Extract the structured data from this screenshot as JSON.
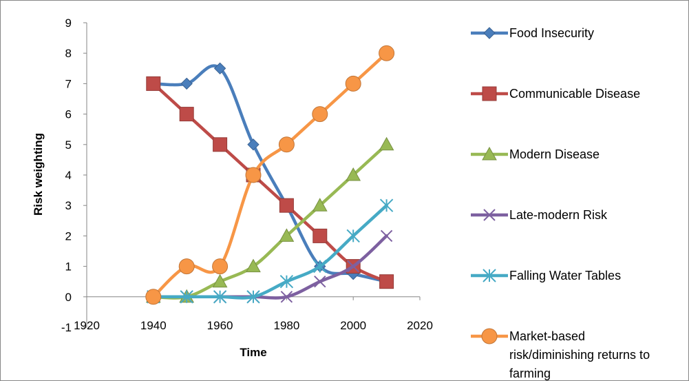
{
  "chart_data": {
    "type": "line",
    "title": "",
    "xlabel": "Time",
    "ylabel": "Risk weighting",
    "xlim": [
      1920,
      2020
    ],
    "ylim": [
      -1,
      9
    ],
    "xticks": [
      1920,
      1940,
      1960,
      1980,
      2000,
      2020
    ],
    "yticks": [
      -1,
      0,
      1,
      2,
      3,
      4,
      5,
      6,
      7,
      8,
      9
    ],
    "x": [
      1940,
      1950,
      1960,
      1970,
      1980,
      1990,
      2000,
      2010
    ],
    "legend_position": "right",
    "grid": false,
    "series": [
      {
        "name": "Food Insecurity",
        "color": "#4a7ebb",
        "marker": "diamond",
        "values": [
          7,
          7,
          7.5,
          5,
          3,
          1,
          0.75,
          0.5
        ]
      },
      {
        "name": "Communicable Disease",
        "color": "#be4b48",
        "marker": "square",
        "values": [
          7,
          6,
          5,
          4,
          3,
          2,
          1,
          0.5
        ]
      },
      {
        "name": "Modern Disease",
        "color": "#98b954",
        "marker": "triangle",
        "values": [
          0,
          0,
          0.5,
          1,
          2,
          3,
          4,
          5
        ]
      },
      {
        "name": "Late-modern Risk",
        "color": "#7d60a0",
        "marker": "x",
        "values": [
          0,
          0,
          0,
          0,
          0,
          0.5,
          1,
          2
        ]
      },
      {
        "name": "Falling Water Tables",
        "color": "#46aac5",
        "marker": "star",
        "values": [
          0,
          0,
          0,
          0,
          0.5,
          1,
          2,
          3
        ]
      },
      {
        "name": "Market-based risk/diminishing returns to farming",
        "color": "#f79646",
        "marker": "circle",
        "label_lines": [
          "Market-based",
          "risk/diminishing returns to",
          "farming"
        ],
        "values": [
          0,
          1,
          1,
          4,
          5,
          6,
          7,
          8
        ]
      }
    ]
  }
}
